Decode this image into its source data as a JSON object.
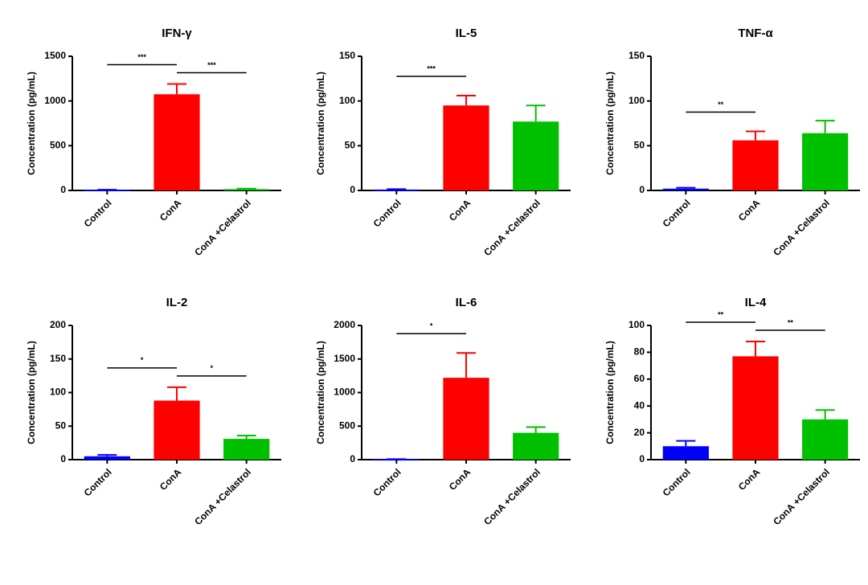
{
  "chart_data": [
    {
      "type": "bar",
      "title": "IFN-γ",
      "ylabel": "Concentration (pg/mL)",
      "categories": [
        "Control",
        "ConA",
        "ConA +Celastrol"
      ],
      "values": [
        5,
        1075,
        15
      ],
      "errors": [
        3,
        115,
        5
      ],
      "colors": [
        "#0000ff",
        "#ff0000",
        "#00c000"
      ],
      "ylim": [
        0,
        1500
      ],
      "yticks": [
        0,
        500,
        1000,
        1500
      ],
      "annotations": [
        {
          "label": "***",
          "from": 0,
          "to": 1
        },
        {
          "label": "***",
          "from": 1,
          "to": 2
        }
      ]
    },
    {
      "type": "bar",
      "title": "IL-5",
      "ylabel": "Concentration (pg/mL)",
      "categories": [
        "Control",
        "ConA",
        "ConA +Celastrol"
      ],
      "values": [
        1,
        95,
        77
      ],
      "errors": [
        0.5,
        11,
        18
      ],
      "colors": [
        "#0000ff",
        "#ff0000",
        "#00c000"
      ],
      "ylim": [
        0,
        150
      ],
      "yticks": [
        0,
        50,
        100,
        150
      ],
      "annotations": [
        {
          "label": "***",
          "from": 0,
          "to": 1
        }
      ]
    },
    {
      "type": "bar",
      "title": "TNF-α",
      "ylabel": "Concentration (pg/mL)",
      "categories": [
        "Control",
        "ConA",
        "ConA +Celastrol"
      ],
      "values": [
        2,
        56,
        64
      ],
      "errors": [
        1,
        10,
        14
      ],
      "colors": [
        "#0000ff",
        "#ff0000",
        "#00c000"
      ],
      "ylim": [
        0,
        150
      ],
      "yticks": [
        0,
        50,
        100,
        150
      ],
      "annotations": [
        {
          "label": "**",
          "from": 0,
          "to": 1
        }
      ]
    },
    {
      "type": "bar",
      "title": "IL-2",
      "ylabel": "Concentration (pg/mL)",
      "categories": [
        "Control",
        "ConA",
        "ConA +Celastrol"
      ],
      "values": [
        5,
        88,
        31
      ],
      "errors": [
        2,
        20,
        5
      ],
      "colors": [
        "#0000ff",
        "#ff0000",
        "#00c000"
      ],
      "ylim": [
        0,
        200
      ],
      "yticks": [
        0,
        50,
        100,
        150,
        200
      ],
      "annotations": [
        {
          "label": "*",
          "from": 0,
          "to": 1
        },
        {
          "label": "*",
          "from": 1,
          "to": 2
        }
      ]
    },
    {
      "type": "bar",
      "title": "IL-6",
      "ylabel": "Concentration (pg/mL)",
      "categories": [
        "Control",
        "ConA",
        "ConA +Celastrol"
      ],
      "values": [
        5,
        1220,
        400
      ],
      "errors": [
        3,
        370,
        85
      ],
      "colors": [
        "#0000ff",
        "#ff0000",
        "#00c000"
      ],
      "ylim": [
        0,
        2000
      ],
      "yticks": [
        0,
        500,
        1000,
        1500,
        2000
      ],
      "annotations": [
        {
          "label": "*",
          "from": 0,
          "to": 1
        }
      ]
    },
    {
      "type": "bar",
      "title": "IL-4",
      "ylabel": "Concentration (pg/mL)",
      "categories": [
        "Control",
        "ConA",
        "ConA +Celastrol"
      ],
      "values": [
        10,
        77,
        30
      ],
      "errors": [
        4,
        11,
        7
      ],
      "colors": [
        "#0000ff",
        "#ff0000",
        "#00c000"
      ],
      "ylim": [
        0,
        100
      ],
      "yticks": [
        0,
        20,
        40,
        60,
        80,
        100
      ],
      "annotations": [
        {
          "label": "**",
          "from": 0,
          "to": 1
        },
        {
          "label": "**",
          "from": 1,
          "to": 2
        }
      ]
    }
  ]
}
